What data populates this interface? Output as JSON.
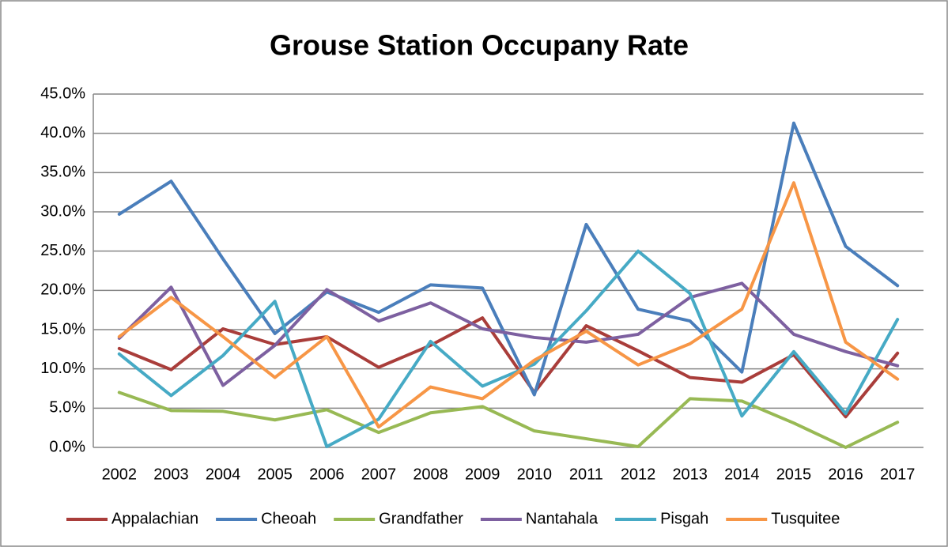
{
  "chart_data": {
    "type": "line",
    "title": "Grouse Station Occupany Rate",
    "categories": [
      "2002",
      "2003",
      "2004",
      "2005",
      "2006",
      "2007",
      "2008",
      "2009",
      "2010",
      "2011",
      "2012",
      "2013",
      "2014",
      "2015",
      "2016",
      "2017"
    ],
    "series": [
      {
        "name": "Appalachian",
        "color": "#a93d3a",
        "values": [
          12.6,
          9.9,
          15.1,
          13.1,
          14.1,
          10.2,
          13.0,
          16.5,
          7.0,
          15.5,
          12.3,
          8.9,
          8.3,
          11.8,
          3.9,
          12.0
        ]
      },
      {
        "name": "Cheoah",
        "color": "#4a7ebb",
        "values": [
          29.7,
          33.9,
          24.0,
          14.5,
          19.8,
          17.2,
          20.7,
          20.3,
          6.7,
          28.4,
          17.6,
          16.1,
          9.6,
          41.3,
          25.6,
          20.6
        ]
      },
      {
        "name": "Grandfather",
        "color": "#98b954",
        "values": [
          7.0,
          4.7,
          4.6,
          3.5,
          4.8,
          1.9,
          4.4,
          5.2,
          2.1,
          1.1,
          0.1,
          6.2,
          5.9,
          3.1,
          0.0,
          3.2
        ]
      },
      {
        "name": "Nantahala",
        "color": "#7d60a0",
        "values": [
          13.9,
          20.4,
          7.9,
          13.0,
          20.1,
          16.1,
          18.4,
          15.1,
          14.0,
          13.4,
          14.4,
          19.1,
          20.9,
          14.4,
          12.2,
          10.4
        ]
      },
      {
        "name": "Pisgah",
        "color": "#46aac5",
        "values": [
          11.9,
          6.6,
          11.7,
          18.6,
          0.1,
          3.6,
          13.5,
          7.8,
          10.6,
          17.4,
          25.0,
          19.6,
          4.0,
          12.2,
          4.3,
          16.3
        ]
      },
      {
        "name": "Tusquitee",
        "color": "#f79646",
        "values": [
          14.1,
          19.1,
          14.1,
          8.9,
          14.1,
          2.6,
          7.7,
          6.2,
          11.1,
          14.8,
          10.5,
          13.2,
          17.6,
          33.7,
          13.4,
          8.7
        ]
      }
    ],
    "ylim": [
      0,
      45
    ],
    "yticks": [
      {
        "value": 0,
        "label": "0.0%"
      },
      {
        "value": 5,
        "label": "5.0%"
      },
      {
        "value": 10,
        "label": "10.0%"
      },
      {
        "value": 15,
        "label": "15.0%"
      },
      {
        "value": 20,
        "label": "20.0%"
      },
      {
        "value": 25,
        "label": "25.0%"
      },
      {
        "value": 30,
        "label": "30.0%"
      },
      {
        "value": 35,
        "label": "35.0%"
      },
      {
        "value": 40,
        "label": "40.0%"
      },
      {
        "value": 45,
        "label": "45.0%"
      }
    ],
    "grid": true,
    "legend": "bottom"
  }
}
